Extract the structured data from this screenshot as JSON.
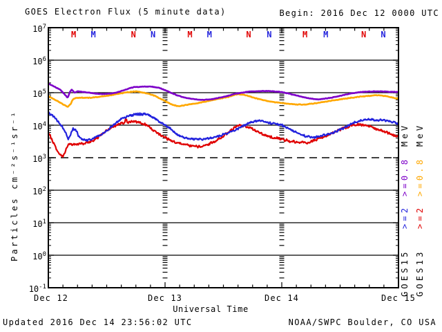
{
  "header": {
    "title": "GOES Electron Flux (5 minute data)",
    "begin_label": "Begin: 2016 Dec 12 0000 UTC"
  },
  "footer": {
    "updated": "Updated 2016 Dec 14 23:56:02 UTC",
    "source": "NOAA/SWPC Boulder, CO USA"
  },
  "legend": {
    "columns": [
      {
        "satellite": "GOES15",
        "ge2": ">=2",
        "ge08": ">=0.8",
        "unit": "MeV",
        "ge2_color": "#2222DD",
        "ge08_color": "#7D00C8"
      },
      {
        "satellite": "GOES13",
        "ge2": ">=2",
        "ge08": ">=0.8",
        "unit": "MeV",
        "ge2_color": "#E00000",
        "ge08_color": "#FFA800"
      }
    ]
  },
  "chart_data": {
    "type": "line",
    "title": "GOES Electron Flux (5 minute data)",
    "x_axis": {
      "label": "Universal Time",
      "tick_labels": [
        "Dec 12",
        "Dec 13",
        "Dec 14",
        "Dec 15"
      ],
      "span_days": 3,
      "minor_tick_hours": 3
    },
    "y_axis": {
      "label": "Particles cm⁻²s⁻¹sr⁻¹",
      "scale": "log",
      "min_exp": -1,
      "max_exp": 7,
      "tick_base": "10",
      "tick_exponents": [
        "7",
        "6",
        "5",
        "4",
        "3",
        "2",
        "1",
        "0",
        "-1"
      ]
    },
    "threshold": {
      "value": 1000,
      "style": "dashed"
    },
    "grid": {
      "solid_decades": [
        6,
        5,
        4,
        2,
        1,
        0
      ],
      "dashed_decades": [
        3
      ]
    },
    "satellites": {
      "GOES15": {
        "marker_color": "#2222DD"
      },
      "GOES13": {
        "marker_color": "#E00000"
      }
    },
    "satellite_markers": [
      {
        "t": 0.217,
        "label": "M",
        "sat": "GOES13"
      },
      {
        "t": 0.385,
        "label": "M",
        "sat": "GOES15"
      },
      {
        "t": 0.729,
        "label": "N",
        "sat": "GOES13"
      },
      {
        "t": 0.897,
        "label": "N",
        "sat": "GOES15"
      },
      {
        "t": 1.213,
        "label": "M",
        "sat": "GOES13"
      },
      {
        "t": 1.38,
        "label": "M",
        "sat": "GOES15"
      },
      {
        "t": 1.716,
        "label": "N",
        "sat": "GOES13"
      },
      {
        "t": 1.893,
        "label": "N",
        "sat": "GOES15"
      },
      {
        "t": 2.199,
        "label": "M",
        "sat": "GOES13"
      },
      {
        "t": 2.377,
        "label": "M",
        "sat": "GOES15"
      },
      {
        "t": 2.702,
        "label": "N",
        "sat": "GOES13"
      },
      {
        "t": 2.87,
        "label": "N",
        "sat": "GOES15"
      }
    ],
    "series": [
      {
        "name": "GOES13 >=0.8 MeV",
        "color": "#FFA800",
        "width": 2.6,
        "noise": 0.012,
        "seed": 2,
        "points": [
          [
            0,
            78000
          ],
          [
            0.05,
            63000
          ],
          [
            0.09,
            52000
          ],
          [
            0.13,
            43000
          ],
          [
            0.165,
            37000
          ],
          [
            0.19,
            44000
          ],
          [
            0.21,
            63000
          ],
          [
            0.24,
            70000
          ],
          [
            0.3,
            70000
          ],
          [
            0.35,
            70000
          ],
          [
            0.4,
            72000
          ],
          [
            0.46,
            76000
          ],
          [
            0.52,
            82000
          ],
          [
            0.58,
            90000
          ],
          [
            0.65,
            100000
          ],
          [
            0.72,
            107000
          ],
          [
            0.76,
            110000
          ],
          [
            0.8,
            103000
          ],
          [
            0.86,
            92000
          ],
          [
            0.92,
            78000
          ],
          [
            0.97,
            63000
          ],
          [
            1.01,
            53000
          ],
          [
            1.07,
            42000
          ],
          [
            1.12,
            38000
          ],
          [
            1.18,
            42000
          ],
          [
            1.25,
            46000
          ],
          [
            1.31,
            50000
          ],
          [
            1.37,
            55000
          ],
          [
            1.42,
            61000
          ],
          [
            1.48,
            67000
          ],
          [
            1.54,
            74000
          ],
          [
            1.58,
            82000
          ],
          [
            1.62,
            90000
          ],
          [
            1.68,
            86000
          ],
          [
            1.74,
            74000
          ],
          [
            1.8,
            64000
          ],
          [
            1.86,
            57000
          ],
          [
            1.92,
            52000
          ],
          [
            2,
            48000
          ],
          [
            2.1,
            44000
          ],
          [
            2.19,
            43000
          ],
          [
            2.28,
            47000
          ],
          [
            2.38,
            53000
          ],
          [
            2.47,
            60000
          ],
          [
            2.56,
            67000
          ],
          [
            2.65,
            74000
          ],
          [
            2.75,
            80000
          ],
          [
            2.81,
            84000
          ],
          [
            2.88,
            80000
          ],
          [
            2.94,
            72000
          ],
          [
            3,
            65000
          ]
        ]
      },
      {
        "name": "GOES15 >=0.8 MeV",
        "color": "#7D00C8",
        "width": 2.6,
        "noise": 0.01,
        "seed": 1,
        "points": [
          [
            0,
            190000
          ],
          [
            0.05,
            155000
          ],
          [
            0.1,
            125000
          ],
          [
            0.145,
            85000
          ],
          [
            0.165,
            70000
          ],
          [
            0.185,
            105000
          ],
          [
            0.2,
            125000
          ],
          [
            0.225,
            100000
          ],
          [
            0.25,
            110000
          ],
          [
            0.3,
            105000
          ],
          [
            0.35,
            100000
          ],
          [
            0.4,
            95000
          ],
          [
            0.47,
            90000
          ],
          [
            0.55,
            95000
          ],
          [
            0.6,
            105000
          ],
          [
            0.65,
            120000
          ],
          [
            0.7,
            140000
          ],
          [
            0.75,
            150000
          ],
          [
            0.83,
            155000
          ],
          [
            0.89,
            152000
          ],
          [
            0.95,
            140000
          ],
          [
            1,
            120000
          ],
          [
            1.05,
            100000
          ],
          [
            1.1,
            84000
          ],
          [
            1.17,
            70000
          ],
          [
            1.25,
            63000
          ],
          [
            1.33,
            60000
          ],
          [
            1.4,
            63000
          ],
          [
            1.48,
            72000
          ],
          [
            1.55,
            82000
          ],
          [
            1.6,
            92000
          ],
          [
            1.66,
            100000
          ],
          [
            1.72,
            108000
          ],
          [
            1.8,
            112000
          ],
          [
            1.9,
            112000
          ],
          [
            2,
            105000
          ],
          [
            2.07,
            92000
          ],
          [
            2.15,
            78000
          ],
          [
            2.22,
            68000
          ],
          [
            2.31,
            62000
          ],
          [
            2.4,
            68000
          ],
          [
            2.5,
            80000
          ],
          [
            2.58,
            93000
          ],
          [
            2.66,
            103000
          ],
          [
            2.75,
            108000
          ],
          [
            2.85,
            110000
          ],
          [
            2.93,
            106000
          ],
          [
            3,
            105000
          ]
        ]
      },
      {
        "name": "GOES13 >=2 MeV",
        "color": "#E00000",
        "width": 2.2,
        "noise": 0.045,
        "seed": 4,
        "points": [
          [
            0,
            5800
          ],
          [
            0.02,
            4300
          ],
          [
            0.035,
            3200
          ],
          [
            0.05,
            2600
          ],
          [
            0.065,
            2000
          ],
          [
            0.08,
            1600
          ],
          [
            0.1,
            1250
          ],
          [
            0.125,
            1100
          ],
          [
            0.145,
            1500
          ],
          [
            0.16,
            2200
          ],
          [
            0.175,
            2500
          ],
          [
            0.2,
            2600
          ],
          [
            0.25,
            2600
          ],
          [
            0.3,
            2700
          ],
          [
            0.35,
            3000
          ],
          [
            0.4,
            3700
          ],
          [
            0.44,
            4600
          ],
          [
            0.47,
            5800
          ],
          [
            0.51,
            7200
          ],
          [
            0.55,
            8800
          ],
          [
            0.59,
            10500
          ],
          [
            0.63,
            12000
          ],
          [
            0.655,
            11500
          ],
          [
            0.665,
            16500
          ],
          [
            0.675,
            12500
          ],
          [
            0.71,
            13000
          ],
          [
            0.75,
            12800
          ],
          [
            0.79,
            12000
          ],
          [
            0.83,
            10500
          ],
          [
            0.87,
            8600
          ],
          [
            0.91,
            6600
          ],
          [
            0.95,
            5200
          ],
          [
            1,
            4200
          ],
          [
            1.05,
            3400
          ],
          [
            1.1,
            2900
          ],
          [
            1.17,
            2500
          ],
          [
            1.25,
            2200
          ],
          [
            1.31,
            2200
          ],
          [
            1.37,
            2600
          ],
          [
            1.43,
            3300
          ],
          [
            1.49,
            4400
          ],
          [
            1.55,
            6300
          ],
          [
            1.6,
            8600
          ],
          [
            1.64,
            10000
          ],
          [
            1.68,
            9200
          ],
          [
            1.73,
            8200
          ],
          [
            1.79,
            6300
          ],
          [
            1.85,
            5000
          ],
          [
            1.92,
            4200
          ],
          [
            2,
            3700
          ],
          [
            2.06,
            3300
          ],
          [
            2.13,
            3000
          ],
          [
            2.21,
            2900
          ],
          [
            2.28,
            3400
          ],
          [
            2.35,
            4200
          ],
          [
            2.43,
            5600
          ],
          [
            2.5,
            7400
          ],
          [
            2.58,
            9200
          ],
          [
            2.64,
            10500
          ],
          [
            2.7,
            10000
          ],
          [
            2.76,
            9200
          ],
          [
            2.82,
            7600
          ],
          [
            2.88,
            6300
          ],
          [
            2.94,
            5200
          ],
          [
            3,
            4500
          ]
        ]
      },
      {
        "name": "GOES15 >=2 MeV",
        "color": "#2222DD",
        "width": 2.2,
        "noise": 0.04,
        "seed": 3,
        "points": [
          [
            0,
            25000
          ],
          [
            0.04,
            19000
          ],
          [
            0.08,
            13000
          ],
          [
            0.12,
            9000
          ],
          [
            0.15,
            5500
          ],
          [
            0.17,
            3600
          ],
          [
            0.19,
            5200
          ],
          [
            0.21,
            7800
          ],
          [
            0.235,
            7500
          ],
          [
            0.255,
            5000
          ],
          [
            0.28,
            3800
          ],
          [
            0.32,
            3500
          ],
          [
            0.37,
            3600
          ],
          [
            0.41,
            4400
          ],
          [
            0.46,
            5500
          ],
          [
            0.52,
            7800
          ],
          [
            0.57,
            11000
          ],
          [
            0.63,
            16000
          ],
          [
            0.7,
            20000
          ],
          [
            0.77,
            22000
          ],
          [
            0.82,
            22000
          ],
          [
            0.87,
            19500
          ],
          [
            0.92,
            15000
          ],
          [
            0.97,
            11500
          ],
          [
            1,
            10000
          ],
          [
            1.04,
            8000
          ],
          [
            1.09,
            5800
          ],
          [
            1.14,
            4400
          ],
          [
            1.2,
            3900
          ],
          [
            1.27,
            3700
          ],
          [
            1.34,
            3800
          ],
          [
            1.41,
            4200
          ],
          [
            1.48,
            4900
          ],
          [
            1.55,
            6000
          ],
          [
            1.62,
            7600
          ],
          [
            1.66,
            9000
          ],
          [
            1.71,
            11000
          ],
          [
            1.76,
            13000
          ],
          [
            1.8,
            14000
          ],
          [
            1.85,
            13000
          ],
          [
            1.91,
            11500
          ],
          [
            1.97,
            10500
          ],
          [
            2,
            10000
          ],
          [
            2.05,
            8200
          ],
          [
            2.1,
            6600
          ],
          [
            2.16,
            5200
          ],
          [
            2.22,
            4400
          ],
          [
            2.27,
            4200
          ],
          [
            2.33,
            4600
          ],
          [
            2.4,
            5200
          ],
          [
            2.47,
            6400
          ],
          [
            2.54,
            8500
          ],
          [
            2.6,
            11000
          ],
          [
            2.66,
            13500
          ],
          [
            2.72,
            15000
          ],
          [
            2.78,
            15000
          ],
          [
            2.84,
            14500
          ],
          [
            2.9,
            14000
          ],
          [
            2.95,
            12500
          ],
          [
            3,
            11000
          ]
        ]
      }
    ]
  }
}
